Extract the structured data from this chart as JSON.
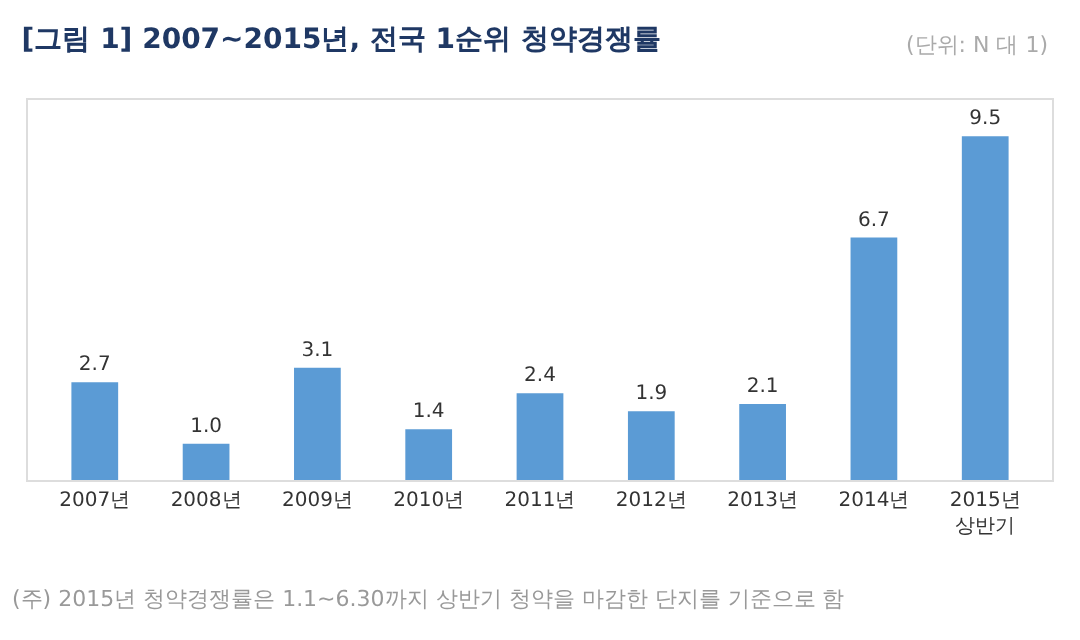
{
  "chart_data": {
    "type": "bar",
    "title": "[그림 1] 2007~2015년, 전국 1순위 청약경쟁률",
    "subtitle": "(단위: N 대 1)",
    "categories": [
      "2007년",
      "2008년",
      "2009년",
      "2010년",
      "2011년",
      "2012년",
      "2013년",
      "2014년",
      "2015년\n상반기"
    ],
    "values": [
      2.7,
      1.0,
      3.1,
      1.4,
      2.4,
      1.9,
      2.1,
      6.7,
      9.5
    ],
    "value_labels": [
      "2.7",
      "1.0",
      "3.1",
      "1.4",
      "2.4",
      "1.9",
      "2.1",
      "6.7",
      "9.5"
    ],
    "color": "#5b9bd5",
    "ylim": [
      0,
      10.5
    ],
    "tick_labels": "x",
    "grid": false,
    "annotations": [
      "(주) 2015년 청약경쟁률은 1.1~6.30까지 상반기 청약을 마감한 단지를 기준으로 함"
    ]
  }
}
